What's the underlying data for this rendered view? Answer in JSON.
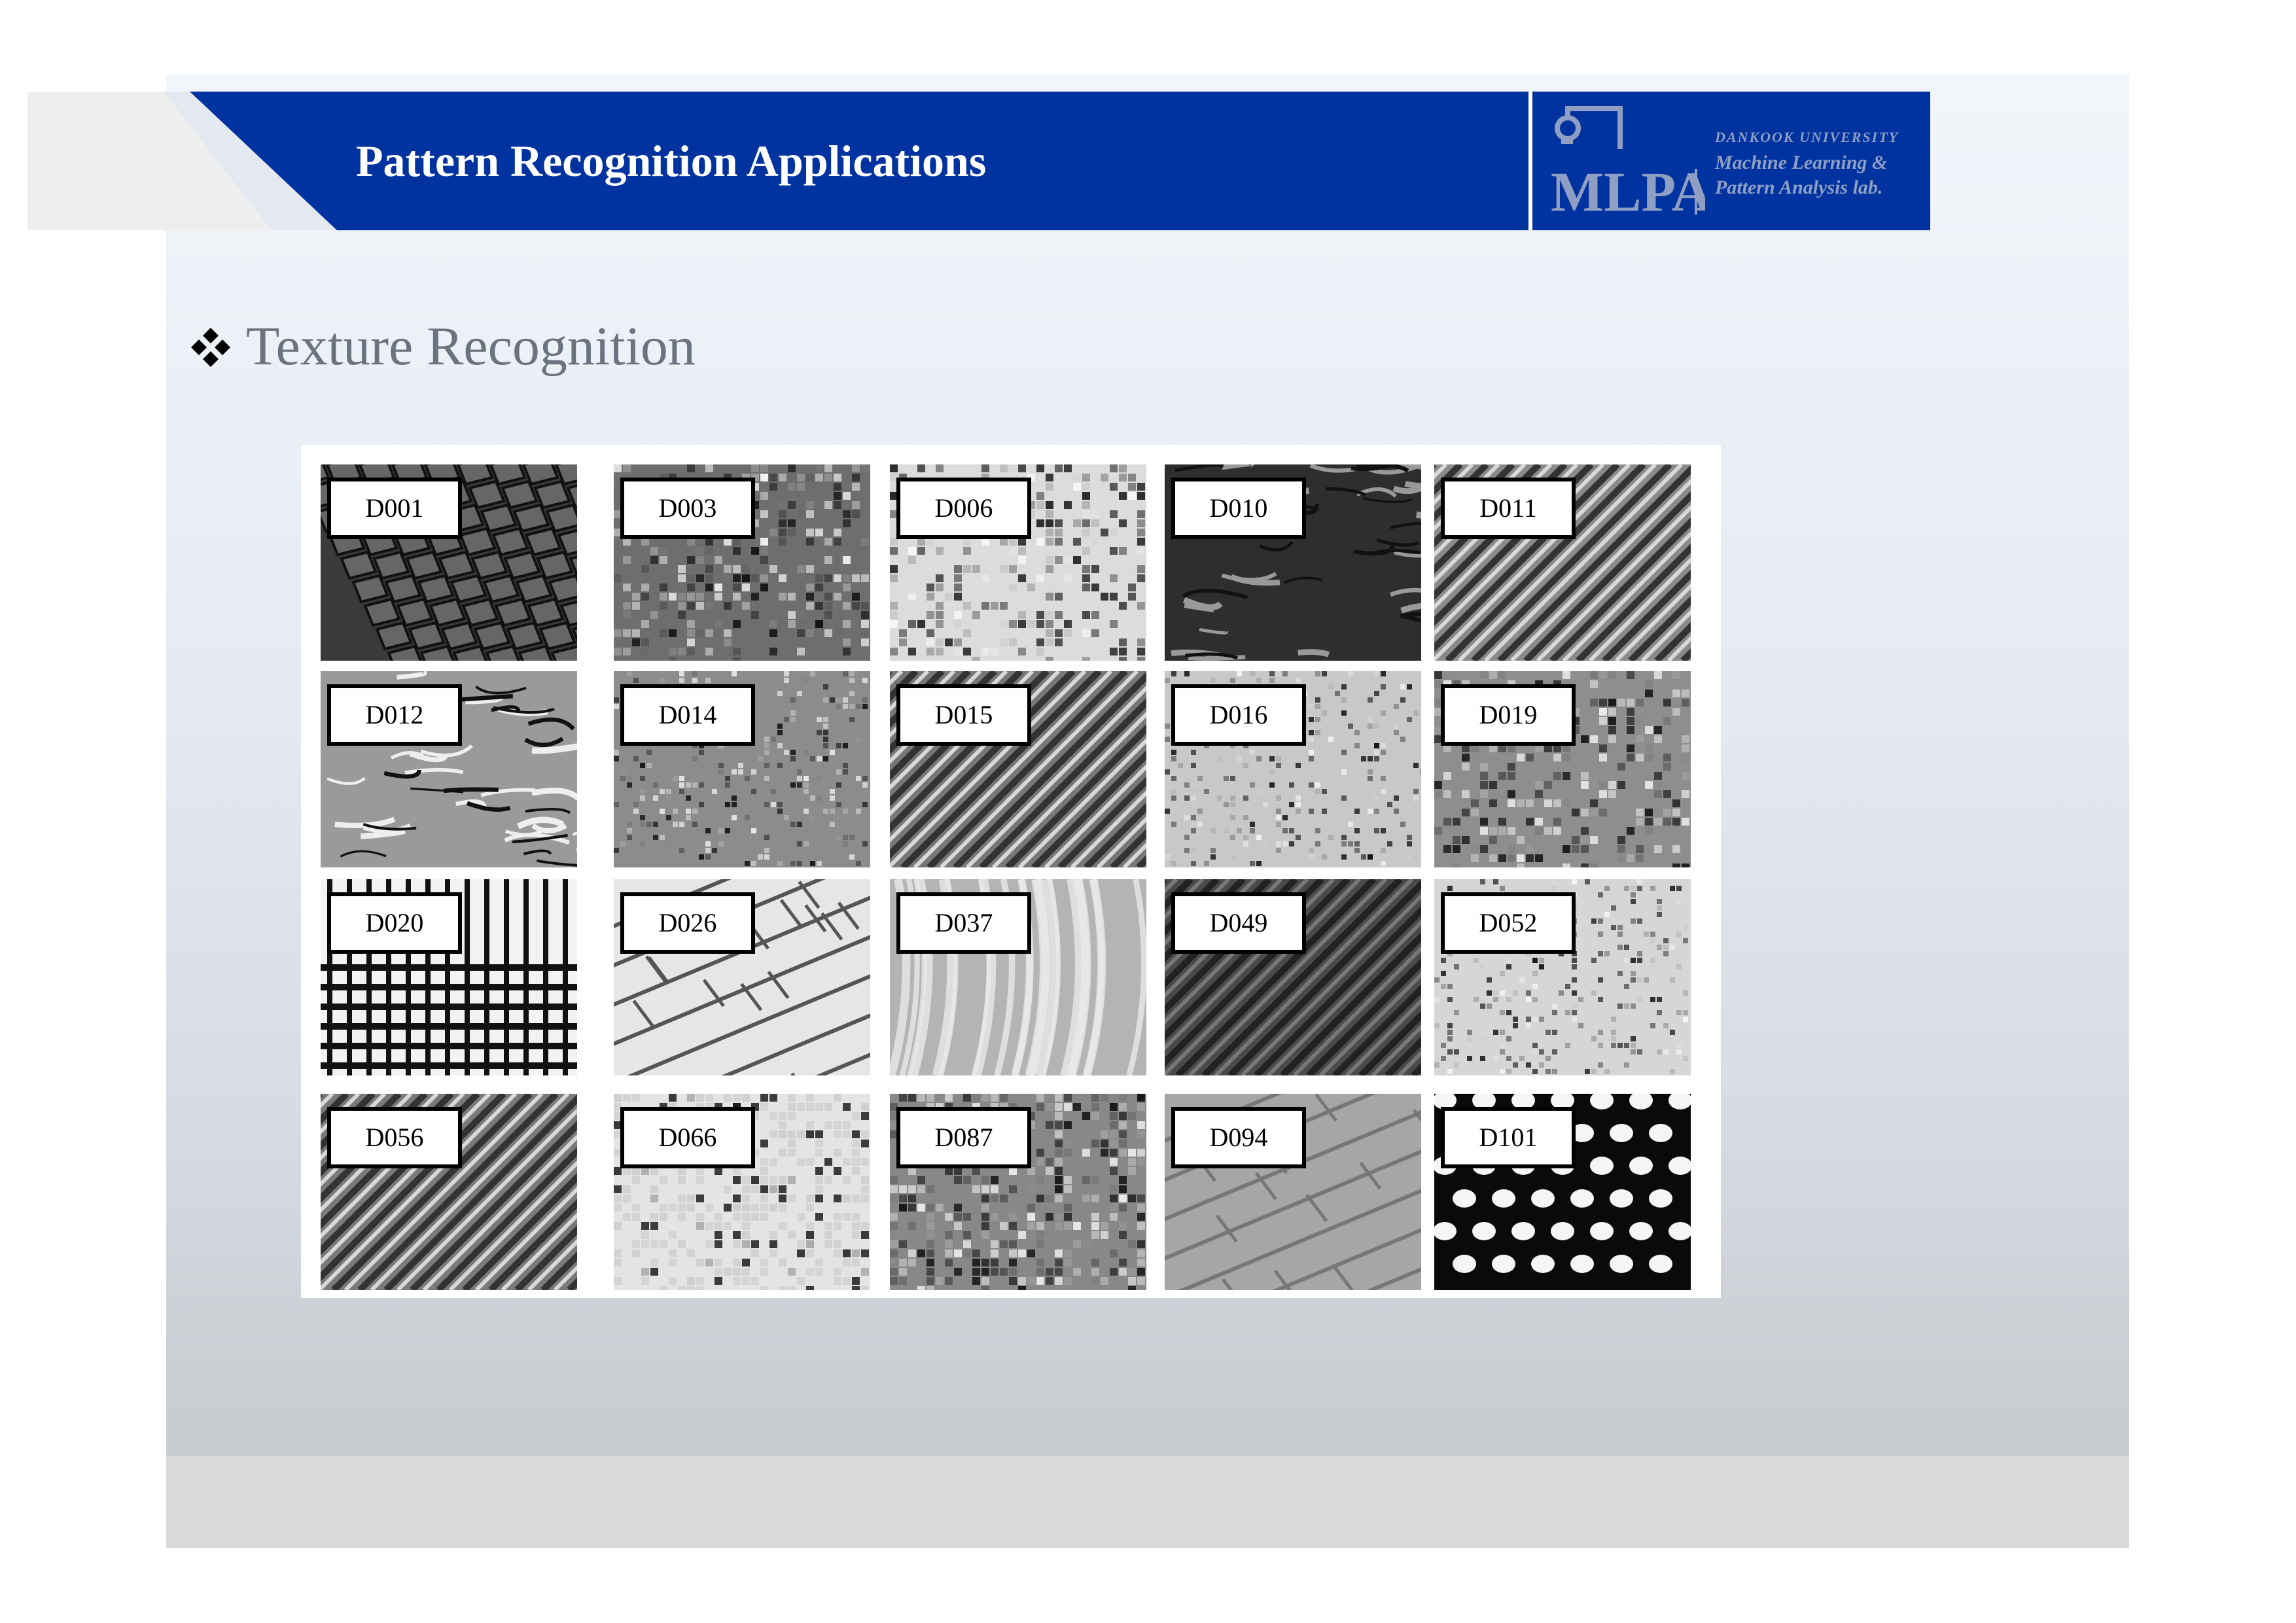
{
  "header": {
    "title": "Pattern Recognition Applications",
    "logo": {
      "mark": "MLPA",
      "university": "DANKOOK UNIVERSITY",
      "lab_line1": "Machine Learning &",
      "lab_line2": "Pattern Analysis lab."
    }
  },
  "section": {
    "bullet_icon": "four-diamond-bullet-icon",
    "heading": "Texture Recognition"
  },
  "textures": [
    {
      "label": "D001",
      "pattern": "tiles-dark"
    },
    {
      "label": "D003",
      "pattern": "scales-medium"
    },
    {
      "label": "D006",
      "pattern": "weave-light"
    },
    {
      "label": "D010",
      "pattern": "cracks-dark"
    },
    {
      "label": "D011",
      "pattern": "diagonal-stripes"
    },
    {
      "label": "D012",
      "pattern": "bark-wavy"
    },
    {
      "label": "D014",
      "pattern": "fine-weave-medium"
    },
    {
      "label": "D015",
      "pattern": "straw-diagonal"
    },
    {
      "label": "D016",
      "pattern": "fine-grain-light"
    },
    {
      "label": "D019",
      "pattern": "speckle-medium"
    },
    {
      "label": "D020",
      "pattern": "grid-holes"
    },
    {
      "label": "D026",
      "pattern": "bricks-light"
    },
    {
      "label": "D037",
      "pattern": "water-waves"
    },
    {
      "label": "D049",
      "pattern": "diagonal-dark"
    },
    {
      "label": "D052",
      "pattern": "fine-mesh-light"
    },
    {
      "label": "D056",
      "pattern": "braid-diagonal"
    },
    {
      "label": "D066",
      "pattern": "pebbles-light"
    },
    {
      "label": "D087",
      "pattern": "noise-dense"
    },
    {
      "label": "D094",
      "pattern": "bricks-gray"
    },
    {
      "label": "D101",
      "pattern": "dots-on-black"
    }
  ],
  "colors": {
    "header_blue": "#0033a0",
    "logo_text": "#8f9fc3",
    "heading_gray": "#6b7280"
  }
}
